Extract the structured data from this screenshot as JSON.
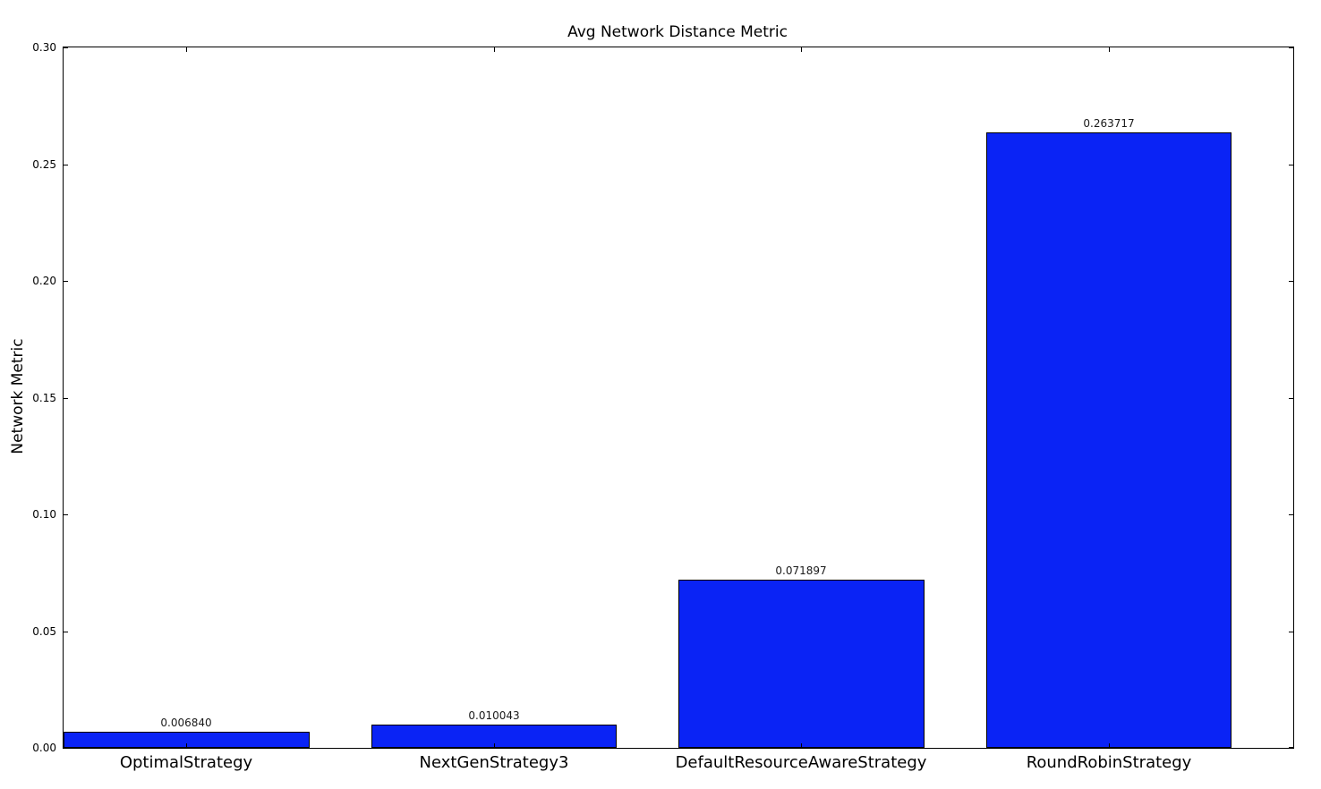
{
  "chart_data": {
    "type": "bar",
    "title": "Avg Network Distance Metric",
    "ylabel": "Network Metric",
    "xlabel": "",
    "categories": [
      "OptimalStrategy",
      "NextGenStrategy3",
      "DefaultResourceAwareStrategy",
      "RoundRobinStrategy"
    ],
    "values": [
      0.00684,
      0.010043,
      0.071897,
      0.263717
    ],
    "value_labels": [
      "0.006840",
      "0.010043",
      "0.071897",
      "0.263717"
    ],
    "ylim": [
      0.0,
      0.3
    ],
    "ytick_labels": [
      "0.00",
      "0.05",
      "0.10",
      "0.15",
      "0.20",
      "0.25",
      "0.30"
    ],
    "bar_color": "#0a23f5",
    "bar_edge_color": "#000000",
    "axis_color": "#000000",
    "background": "#ffffff",
    "grid": false,
    "legend_position": "none",
    "bar_width_fraction": 0.8,
    "x_unit_span": 4,
    "tick_direction": "in"
  }
}
